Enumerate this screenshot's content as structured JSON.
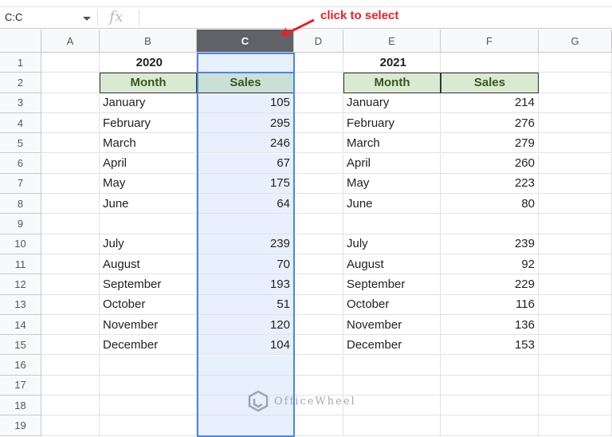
{
  "formula_bar": {
    "name_box": "C:C",
    "fx_icon": "fx"
  },
  "annotation": {
    "text": "click to select",
    "color": "#e8202a"
  },
  "columns": [
    "A",
    "B",
    "C",
    "D",
    "E",
    "F",
    "G"
  ],
  "selected_column": "C",
  "rows": [
    "1",
    "2",
    "3",
    "4",
    "5",
    "6",
    "7",
    "8",
    "9",
    "10",
    "11",
    "12",
    "13",
    "14",
    "15",
    "16",
    "17",
    "18",
    "19"
  ],
  "table_2020": {
    "year": "2020",
    "headers": [
      "Month",
      "Sales"
    ],
    "data": [
      [
        "January",
        "105"
      ],
      [
        "February",
        "295"
      ],
      [
        "March",
        "246"
      ],
      [
        "April",
        "67"
      ],
      [
        "May",
        "175"
      ],
      [
        "June",
        "64"
      ],
      [
        "",
        ""
      ],
      [
        "July",
        "239"
      ],
      [
        "August",
        "70"
      ],
      [
        "September",
        "193"
      ],
      [
        "October",
        "51"
      ],
      [
        "November",
        "120"
      ],
      [
        "December",
        "104"
      ]
    ]
  },
  "table_2021": {
    "year": "2021",
    "headers": [
      "Month",
      "Sales"
    ],
    "data": [
      [
        "January",
        "214"
      ],
      [
        "February",
        "276"
      ],
      [
        "March",
        "279"
      ],
      [
        "April",
        "260"
      ],
      [
        "May",
        "223"
      ],
      [
        "June",
        "80"
      ],
      [
        "",
        ""
      ],
      [
        "July",
        "239"
      ],
      [
        "August",
        "92"
      ],
      [
        "September",
        "229"
      ],
      [
        "October",
        "116"
      ],
      [
        "November",
        "136"
      ],
      [
        "December",
        "153"
      ]
    ]
  },
  "watermark": "OfficeWheel",
  "colors": {
    "header_fill": "#d9ead3",
    "header_text": "#38571a",
    "selection": "#4a86e8"
  }
}
